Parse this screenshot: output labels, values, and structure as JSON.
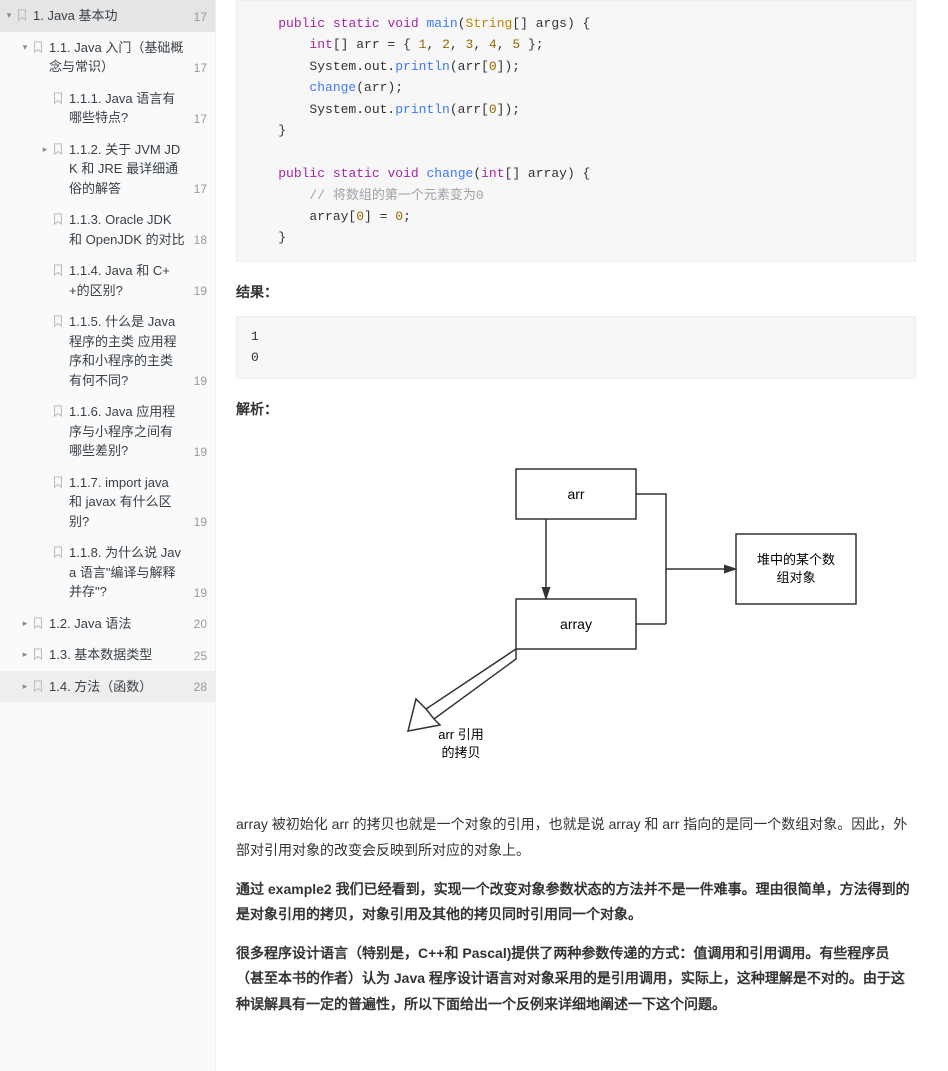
{
  "sidebar": {
    "items": [
      {
        "level": 0,
        "label": "1. Java 基本功",
        "count": 17,
        "chev": "down",
        "selected": false
      },
      {
        "level": 1,
        "label": "1.1. Java 入门（基础概念与常识）",
        "count": 17,
        "chev": "down",
        "selected": false
      },
      {
        "level": 2,
        "label": "1.1.1. Java 语言有哪些特点?",
        "count": 17,
        "chev": "none",
        "selected": false
      },
      {
        "level": 2,
        "label": "1.1.2. 关于 JVM JDK 和 JRE 最详细通俗的解答",
        "count": 17,
        "chev": "right",
        "selected": false
      },
      {
        "level": 2,
        "label": "1.1.3. Oracle JDK 和 OpenJDK 的对比",
        "count": 18,
        "chev": "none",
        "selected": false
      },
      {
        "level": 2,
        "label": "1.1.4. Java 和 C++的区别?",
        "count": 19,
        "chev": "none",
        "selected": false
      },
      {
        "level": 2,
        "label": "1.1.5. 什么是 Java 程序的主类 应用程序和小程序的主类有何不同?",
        "count": 19,
        "chev": "none",
        "selected": false
      },
      {
        "level": 2,
        "label": "1.1.6. Java 应用程序与小程序之间有哪些差别?",
        "count": 19,
        "chev": "none",
        "selected": false
      },
      {
        "level": 2,
        "label": "1.1.7. import java 和 javax 有什么区别?",
        "count": 19,
        "chev": "none",
        "selected": false
      },
      {
        "level": 2,
        "label": "1.1.8. 为什么说 Java 语言\"编译与解释并存\"?",
        "count": 19,
        "chev": "none",
        "selected": false
      },
      {
        "level": 1,
        "label": "1.2. Java 语法",
        "count": 20,
        "chev": "right",
        "selected": false
      },
      {
        "level": 1,
        "label": "1.3. 基本数据类型",
        "count": 25,
        "chev": "right",
        "selected": false
      },
      {
        "level": 1,
        "label": "1.4. 方法（函数）",
        "count": 28,
        "chev": "right",
        "selected": true
      }
    ]
  },
  "code1": {
    "tokens": [
      [
        "    ",
        ""
      ],
      [
        "public",
        "kw"
      ],
      [
        " ",
        ""
      ],
      [
        "static",
        "kw"
      ],
      [
        " ",
        ""
      ],
      [
        "void",
        "kw"
      ],
      [
        " ",
        ""
      ],
      [
        "main",
        "fn"
      ],
      [
        "(",
        ""
      ],
      [
        "String",
        "type"
      ],
      [
        "[] args) {\n",
        ""
      ],
      [
        "        ",
        ""
      ],
      [
        "int",
        "kw"
      ],
      [
        "[] arr = { ",
        ""
      ],
      [
        "1",
        "num"
      ],
      [
        ", ",
        ""
      ],
      [
        "2",
        "num"
      ],
      [
        ", ",
        ""
      ],
      [
        "3",
        "num"
      ],
      [
        ", ",
        ""
      ],
      [
        "4",
        "num"
      ],
      [
        ", ",
        ""
      ],
      [
        "5",
        "num"
      ],
      [
        " };\n",
        ""
      ],
      [
        "        System.out.",
        ""
      ],
      [
        "println",
        "fn"
      ],
      [
        "(arr[",
        ""
      ],
      [
        "0",
        "num"
      ],
      [
        "]);\n",
        ""
      ],
      [
        "        ",
        ""
      ],
      [
        "change",
        "fn"
      ],
      [
        "(arr);\n",
        ""
      ],
      [
        "        System.out.",
        ""
      ],
      [
        "println",
        "fn"
      ],
      [
        "(arr[",
        ""
      ],
      [
        "0",
        "num"
      ],
      [
        "]);\n",
        ""
      ],
      [
        "    }\n\n",
        ""
      ],
      [
        "    ",
        ""
      ],
      [
        "public",
        "kw"
      ],
      [
        " ",
        ""
      ],
      [
        "static",
        "kw"
      ],
      [
        " ",
        ""
      ],
      [
        "void",
        "kw"
      ],
      [
        " ",
        ""
      ],
      [
        "change",
        "fn"
      ],
      [
        "(",
        ""
      ],
      [
        "int",
        "kw"
      ],
      [
        "[] array) {\n",
        ""
      ],
      [
        "        ",
        ""
      ],
      [
        "// 将数组的第一个元素变为0",
        "cmt"
      ],
      [
        "\n",
        ""
      ],
      [
        "        array[",
        ""
      ],
      [
        "0",
        "num"
      ],
      [
        "] = ",
        ""
      ],
      [
        "0",
        "num"
      ],
      [
        ";\n",
        ""
      ],
      [
        "    }",
        ""
      ]
    ]
  },
  "labels": {
    "result": "结果：",
    "analysis": "解析：",
    "output": "1\n0"
  },
  "diagram": {
    "arr": "arr",
    "array": "array",
    "heap": "堆中的某个数组对象",
    "copy": "arr 引用的拷贝"
  },
  "paragraphs": {
    "p1": "array 被初始化 arr 的拷贝也就是一个对象的引用，也就是说 array 和 arr 指向的是同一个数组对象。因此，外部对引用对象的改变会反映到所对应的对象上。",
    "p2": "通过 example2 我们已经看到，实现一个改变对象参数状态的方法并不是一件难事。理由很简单，方法得到的是对象引用的拷贝，对象引用及其他的拷贝同时引用同一个对象。",
    "p3": "很多程序设计语言（特别是，C++和 Pascal)提供了两种参数传递的方式：值调用和引用调用。有些程序员（甚至本书的作者）认为 Java 程序设计语言对对象采用的是引用调用，实际上，这种理解是不对的。由于这种误解具有一定的普遍性，所以下面给出一个反例来详细地阐述一下这个问题。"
  },
  "colors": {
    "sidebar_bg": "#fafafa",
    "code_bg": "#f7f7f7",
    "border": "#eee",
    "text": "#333",
    "count": "#999",
    "nav_text": "#364149"
  }
}
